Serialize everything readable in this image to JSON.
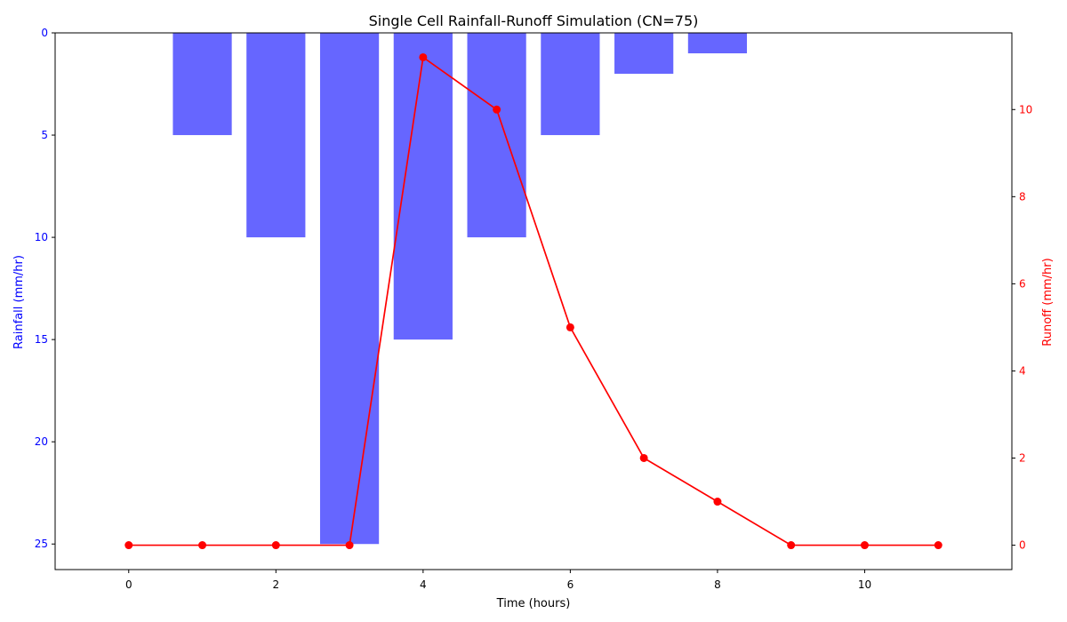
{
  "chart_data": {
    "type": "bar+line",
    "title": "Single Cell Rainfall-Runoff Simulation (CN=75)",
    "xlabel": "Time (hours)",
    "ylabel_left": "Rainfall (mm/hr)",
    "ylabel_right": "Runoff (mm/hr)",
    "xlim": [
      -1,
      12
    ],
    "ylim_left": [
      26.25,
      0
    ],
    "ylim_right": [
      -0.56,
      11.76
    ],
    "x_ticks": [
      0,
      2,
      4,
      6,
      8,
      10
    ],
    "y_left_ticks": [
      0,
      5,
      10,
      15,
      20,
      25
    ],
    "y_right_ticks": [
      0,
      2,
      4,
      6,
      8,
      10
    ],
    "left_axis_inverted": true,
    "grid": false,
    "series": [
      {
        "kind": "bar",
        "axis": "left",
        "color": "#6666ff",
        "x": [
          0,
          1,
          2,
          3,
          4,
          5,
          6,
          7,
          8,
          9,
          10,
          11
        ],
        "values": [
          0,
          5,
          10,
          25,
          15,
          10,
          5,
          2,
          1,
          0,
          0,
          0
        ]
      },
      {
        "kind": "line",
        "axis": "right",
        "color": "#ff0000",
        "marker": "circle",
        "x": [
          0,
          1,
          2,
          3,
          4,
          5,
          6,
          7,
          8,
          9,
          10,
          11
        ],
        "values": [
          0,
          0,
          0,
          0,
          11.2,
          10,
          5,
          2,
          1,
          0,
          0,
          0
        ]
      }
    ],
    "colors": {
      "left_axis": "#0000ff",
      "right_axis": "#ff0000",
      "axis_line": "#000000"
    }
  }
}
